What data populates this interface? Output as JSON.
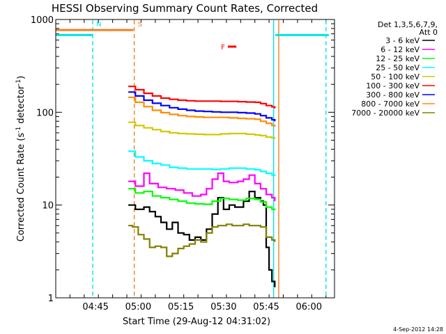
{
  "chart_data": {
    "type": "line",
    "title": "HESSI Observing Summary Count Rates, Corrected",
    "xlabel": "Start Time (29-Aug-12 04:31:02)",
    "ylabel": "Corrected Count Rate (s",
    "ylabel_sup1": "-1",
    "ylabel_mid": " detector",
    "ylabel_sup2": "-1",
    "ylabel_end": ")",
    "x_unit": "minutes after 04:31:02",
    "xlim": [
      0,
      98
    ],
    "ylim": [
      1,
      1000
    ],
    "yscale": "log",
    "x_ticks": [
      {
        "x": 14,
        "label": "04:45"
      },
      {
        "x": 29,
        "label": "05:00"
      },
      {
        "x": 44,
        "label": "05:15"
      },
      {
        "x": 59,
        "label": "05:30"
      },
      {
        "x": 74,
        "label": "05:45"
      },
      {
        "x": 89,
        "label": "06:00"
      }
    ],
    "y_ticks": [
      {
        "y": 1,
        "label": "1"
      },
      {
        "y": 10,
        "label": "10"
      },
      {
        "y": 100,
        "label": "100"
      },
      {
        "y": 1000,
        "label": "1000"
      }
    ],
    "legend_header": [
      "Det 1,3,5,6,7,9,",
      "Att 0"
    ],
    "legend_position": "right",
    "series": [
      {
        "name": "3 - 6 keV",
        "color": "#000000",
        "points": [
          [
            25.5,
            10
          ],
          [
            28,
            9
          ],
          [
            31,
            9.5
          ],
          [
            33,
            8.5
          ],
          [
            35,
            7.5
          ],
          [
            37,
            6.5
          ],
          [
            39,
            5.5
          ],
          [
            41,
            6.5
          ],
          [
            43,
            5
          ],
          [
            45,
            4.8
          ],
          [
            47,
            4.2
          ],
          [
            49,
            4.5
          ],
          [
            51,
            4.2
          ],
          [
            53,
            5.5
          ],
          [
            55,
            8
          ],
          [
            57,
            12
          ],
          [
            59,
            9
          ],
          [
            61,
            10
          ],
          [
            63,
            9.5
          ],
          [
            66,
            11
          ],
          [
            68,
            14
          ],
          [
            70,
            12
          ],
          [
            72,
            11
          ],
          [
            73,
            10
          ],
          [
            74,
            3.5
          ],
          [
            75,
            2
          ],
          [
            76,
            1.5
          ],
          [
            77,
            1.3
          ]
        ]
      },
      {
        "name": "6 - 12 keV",
        "color": "#ff00ff",
        "points": [
          [
            25.5,
            18
          ],
          [
            28,
            16
          ],
          [
            31,
            22
          ],
          [
            33,
            17
          ],
          [
            36,
            15.5
          ],
          [
            39,
            15
          ],
          [
            42,
            14.5
          ],
          [
            45,
            13.5
          ],
          [
            48,
            12.5
          ],
          [
            51,
            13
          ],
          [
            53,
            15
          ],
          [
            55,
            19
          ],
          [
            57,
            22
          ],
          [
            59,
            18
          ],
          [
            61,
            17.5
          ],
          [
            64,
            18
          ],
          [
            66,
            19
          ],
          [
            68,
            21
          ],
          [
            70,
            17
          ],
          [
            72,
            15
          ],
          [
            74,
            13
          ],
          [
            76,
            12
          ],
          [
            77,
            11
          ]
        ]
      },
      {
        "name": "12 - 25 keV",
        "color": "#00ff00",
        "points": [
          [
            25.5,
            15
          ],
          [
            28,
            13.5
          ],
          [
            31,
            14
          ],
          [
            34,
            12.5
          ],
          [
            37,
            12
          ],
          [
            40,
            11.5
          ],
          [
            43,
            11
          ],
          [
            46,
            10.5
          ],
          [
            49,
            10.3
          ],
          [
            52,
            10.2
          ],
          [
            55,
            11
          ],
          [
            58,
            11.8
          ],
          [
            61,
            11.5
          ],
          [
            64,
            11.3
          ],
          [
            67,
            11.8
          ],
          [
            70,
            11.5
          ],
          [
            72,
            10.8
          ],
          [
            74,
            9.5
          ],
          [
            76,
            9
          ],
          [
            77,
            8.8
          ]
        ]
      },
      {
        "name": "25 - 50 keV",
        "color": "#00ffff",
        "points": [
          [
            25.5,
            38
          ],
          [
            28,
            33
          ],
          [
            31,
            30
          ],
          [
            34,
            28
          ],
          [
            37,
            27
          ],
          [
            40,
            25.5
          ],
          [
            43,
            25
          ],
          [
            46,
            24.5
          ],
          [
            49,
            24.5
          ],
          [
            52,
            24.5
          ],
          [
            55,
            24.2
          ],
          [
            58,
            24.5
          ],
          [
            61,
            25
          ],
          [
            64,
            25
          ],
          [
            67,
            24.5
          ],
          [
            70,
            24
          ],
          [
            72,
            23
          ],
          [
            74,
            22
          ],
          [
            76,
            21
          ],
          [
            77,
            20.5
          ]
        ]
      },
      {
        "name": "50 - 100 keV",
        "color": "#d2c800",
        "points": [
          [
            25.5,
            78
          ],
          [
            28,
            72
          ],
          [
            31,
            68
          ],
          [
            34,
            65
          ],
          [
            37,
            62
          ],
          [
            40,
            60
          ],
          [
            43,
            59
          ],
          [
            46,
            58.5
          ],
          [
            49,
            58
          ],
          [
            52,
            57.5
          ],
          [
            55,
            57.5
          ],
          [
            58,
            58.5
          ],
          [
            61,
            59
          ],
          [
            64,
            59
          ],
          [
            67,
            58
          ],
          [
            70,
            57
          ],
          [
            72,
            56
          ],
          [
            74,
            54
          ],
          [
            76,
            53
          ],
          [
            77,
            52
          ]
        ]
      },
      {
        "name": "100 - 300 keV",
        "color": "#ff0000",
        "points": [
          [
            25.5,
            190
          ],
          [
            28,
            175
          ],
          [
            31,
            160
          ],
          [
            34,
            150
          ],
          [
            37,
            142
          ],
          [
            40,
            138
          ],
          [
            43,
            135
          ],
          [
            46,
            133
          ],
          [
            49,
            132
          ],
          [
            52,
            132
          ],
          [
            55,
            132
          ],
          [
            58,
            131
          ],
          [
            61,
            131
          ],
          [
            64,
            130
          ],
          [
            67,
            129
          ],
          [
            70,
            128
          ],
          [
            72,
            124
          ],
          [
            74,
            118
          ],
          [
            76,
            114
          ],
          [
            77,
            110
          ]
        ]
      },
      {
        "name": "300 - 800 keV",
        "color": "#0000ff",
        "points": [
          [
            25.5,
            165
          ],
          [
            28,
            150
          ],
          [
            31,
            135
          ],
          [
            34,
            125
          ],
          [
            37,
            118
          ],
          [
            40,
            112
          ],
          [
            43,
            108
          ],
          [
            46,
            105
          ],
          [
            49,
            103
          ],
          [
            52,
            102
          ],
          [
            55,
            101
          ],
          [
            58,
            100
          ],
          [
            61,
            100
          ],
          [
            64,
            99
          ],
          [
            67,
            98
          ],
          [
            70,
            96
          ],
          [
            72,
            92
          ],
          [
            74,
            87
          ],
          [
            76,
            83
          ],
          [
            77,
            80
          ]
        ]
      },
      {
        "name": "800 - 7000 keV",
        "color": "#ff8c00",
        "points": [
          [
            25.5,
            145
          ],
          [
            28,
            128
          ],
          [
            31,
            115
          ],
          [
            34,
            105
          ],
          [
            37,
            99
          ],
          [
            40,
            95
          ],
          [
            43,
            92
          ],
          [
            46,
            90
          ],
          [
            49,
            89
          ],
          [
            52,
            88
          ],
          [
            55,
            88
          ],
          [
            58,
            88
          ],
          [
            61,
            87
          ],
          [
            64,
            86
          ],
          [
            67,
            85
          ],
          [
            70,
            84
          ],
          [
            72,
            80
          ],
          [
            74,
            76
          ],
          [
            76,
            72
          ],
          [
            77,
            70
          ]
        ]
      },
      {
        "name": "7000 - 20000 keV",
        "color": "#808000",
        "points": [
          [
            25.5,
            6
          ],
          [
            27,
            5.8
          ],
          [
            29,
            4.8
          ],
          [
            31,
            4.3
          ],
          [
            33,
            3.5
          ],
          [
            35,
            3.6
          ],
          [
            37,
            3.5
          ],
          [
            39,
            2.8
          ],
          [
            41,
            3
          ],
          [
            43,
            3.4
          ],
          [
            45,
            3.6
          ],
          [
            47,
            3.8
          ],
          [
            49,
            4.2
          ],
          [
            51,
            4
          ],
          [
            53,
            5
          ],
          [
            55,
            5.8
          ],
          [
            57,
            6
          ],
          [
            60,
            6.2
          ],
          [
            62,
            6
          ],
          [
            64,
            6
          ],
          [
            66,
            6.2
          ],
          [
            68,
            6
          ],
          [
            70,
            6
          ],
          [
            72,
            5.8
          ],
          [
            74,
            4.5
          ],
          [
            76,
            4.2
          ],
          [
            77,
            4
          ]
        ]
      }
    ],
    "annotations": [
      {
        "kind": "vline",
        "x": 13,
        "color": "#00e5e5",
        "dashed": true,
        "label": "N",
        "label_y": 900
      },
      {
        "kind": "vline",
        "x": 27.6,
        "color": "#f08020",
        "dashed": true,
        "label": "S",
        "label_y": 900
      },
      {
        "kind": "vline",
        "x": 95,
        "color": "#00e5e5",
        "dashed": true
      },
      {
        "kind": "vline",
        "x": 76.6,
        "color": "#00e5e5",
        "dashed": false
      },
      {
        "kind": "vline",
        "x": 78.4,
        "color": "#f08020",
        "dashed": false
      },
      {
        "kind": "bar",
        "x0": 0,
        "x1": 13,
        "y": 680,
        "color": "#00e5e5"
      },
      {
        "kind": "bar",
        "x0": 0,
        "x1": 27.3,
        "y": 770,
        "color": "#f08020"
      },
      {
        "kind": "bar",
        "x0": 77.2,
        "x1": 96,
        "y": 680,
        "color": "#00e5e5"
      },
      {
        "kind": "bar",
        "x0": 60.5,
        "x1": 63.5,
        "y": 510,
        "color": "#ff0000",
        "label": "F"
      }
    ],
    "footer": "4-Sep-2012 14:28"
  }
}
